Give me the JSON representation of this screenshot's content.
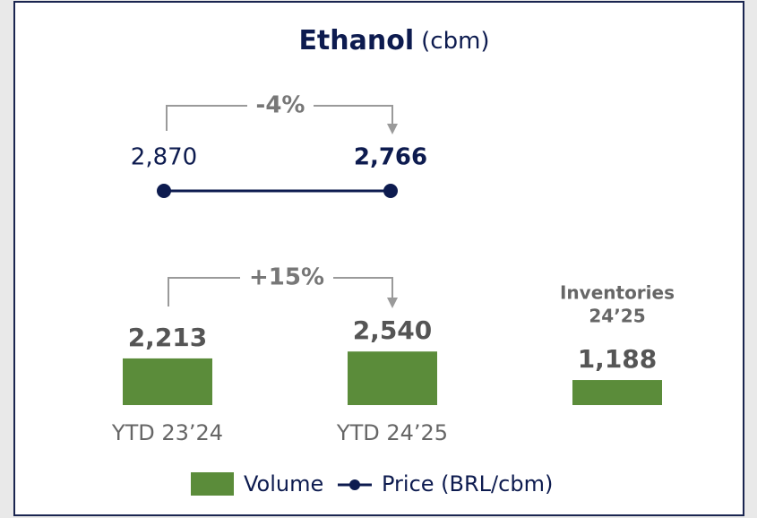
{
  "chart_data": {
    "type": "bar",
    "title": "Ethanol",
    "unit": "(cbm)",
    "categories": [
      "YTD 23’24",
      "YTD 24’25"
    ],
    "series": [
      {
        "name": "Volume",
        "color": "#5b8c3a",
        "values": [
          2213,
          2540
        ],
        "value_labels": [
          "2,213",
          "2,540"
        ]
      },
      {
        "name": "Price (BRL/cbm)",
        "color": "#0d1b4f",
        "values": [
          2870,
          2766
        ],
        "value_labels": [
          "2,870",
          "2,766"
        ]
      }
    ],
    "inventory": {
      "label": [
        "Inventories",
        "24’25"
      ],
      "value": 1188,
      "value_label": "1,188",
      "color": "#5b8c3a"
    },
    "annotations": [
      "-4%",
      "+15%"
    ]
  }
}
